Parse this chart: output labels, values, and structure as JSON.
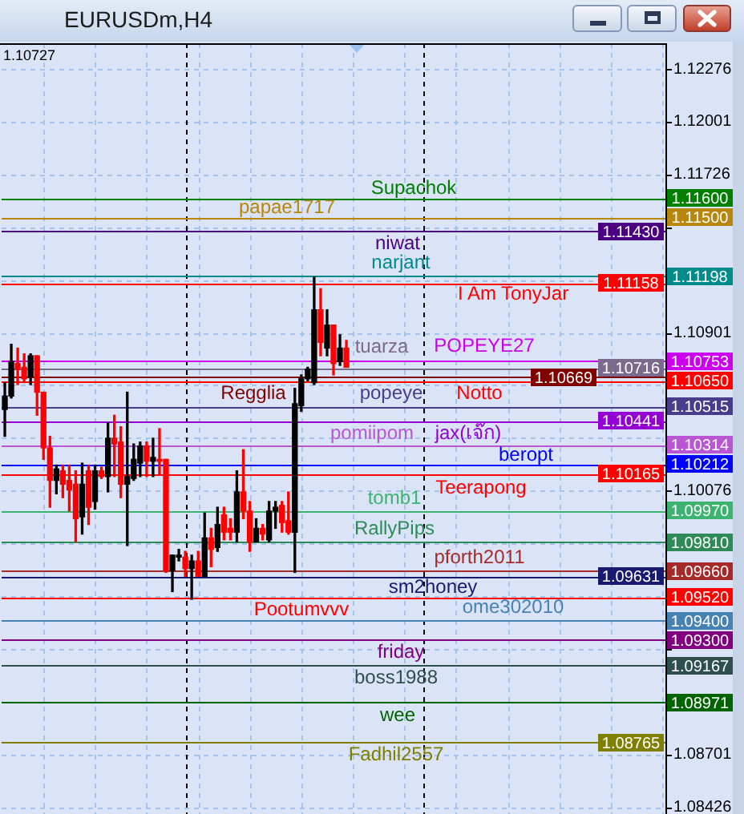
{
  "chart_data": {
    "type": "candlestick",
    "title": "EURUSDm,H4",
    "categories": [
      null,
      null,
      null,
      null,
      null,
      null,
      null,
      null,
      null,
      null,
      null,
      null,
      null,
      null,
      null,
      null,
      null,
      null,
      null,
      null,
      null,
      null,
      null,
      null,
      null,
      null,
      null,
      null,
      null,
      null,
      null,
      null,
      null,
      null,
      null,
      null,
      null,
      null,
      null,
      null,
      null,
      null,
      null,
      null,
      null,
      null,
      null,
      null,
      null,
      null,
      null,
      null,
      null,
      null,
      null,
      null,
      null,
      null,
      null,
      null,
      null,
      null,
      null,
      null,
      null,
      null,
      null,
      null,
      null,
      null,
      null,
      null,
      null,
      null,
      null,
      null,
      null,
      null,
      null,
      null,
      null,
      null,
      null,
      null,
      null,
      null,
      null,
      null,
      null,
      null,
      null,
      null,
      null,
      null,
      null,
      null,
      null,
      null,
      null,
      null,
      null,
      null,
      null
    ],
    "ohlc": [
      [
        1.105,
        1.1064,
        1.1036,
        1.1057
      ],
      [
        1.1057,
        1.1084,
        1.1056,
        1.1075
      ],
      [
        1.1074,
        1.1082,
        1.1063,
        1.1071
      ],
      [
        1.1072,
        1.1079,
        1.1064,
        1.1066
      ],
      [
        1.1067,
        1.1079,
        1.1063,
        1.1078
      ],
      [
        1.1078,
        1.1078,
        1.1047,
        1.1059
      ],
      [
        1.1059,
        1.1059,
        1.1024,
        1.103
      ],
      [
        1.103,
        1.1036,
        1.0999,
        1.1013
      ],
      [
        1.1013,
        1.1021,
        1.1006,
        1.1019
      ],
      [
        1.1018,
        1.1021,
        1.1004,
        1.1011
      ],
      [
        1.1013,
        1.1021,
        1.0997,
        1.1008
      ],
      [
        1.1011,
        1.1018,
        1.0981,
        1.0993
      ],
      [
        1.0994,
        1.1022,
        1.0985,
        1.1011
      ],
      [
        1.1018,
        1.1021,
        1.099,
        1.0999
      ],
      [
        1.1002,
        1.1021,
        1.0998,
        1.1018
      ],
      [
        1.1018,
        1.102,
        1.1014,
        1.1015
      ],
      [
        1.1015,
        1.1043,
        1.1007,
        1.1035
      ],
      [
        1.1035,
        1.1047,
        1.1015,
        1.1032
      ],
      [
        1.1033,
        1.1041,
        1.1004,
        1.1011
      ],
      [
        1.1011,
        1.1059,
        1.0979,
        1.1015
      ],
      [
        1.1014,
        1.1032,
        1.1013,
        1.1024
      ],
      [
        1.1022,
        1.1033,
        1.1015,
        1.1031
      ],
      [
        1.1031,
        1.1033,
        1.1015,
        1.1023
      ],
      [
        1.1023,
        1.1035,
        1.1015,
        1.1025
      ],
      [
        1.1024,
        1.104,
        1.1016,
        1.1023
      ],
      [
        1.1024,
        1.1024,
        1.0965,
        1.0966
      ],
      [
        1.0966,
        1.0974,
        1.0955,
        1.0974
      ],
      [
        1.0973,
        1.0977,
        1.0971,
        1.0974
      ],
      [
        1.0973,
        1.0976,
        1.0963,
        1.0967
      ],
      [
        1.0967,
        1.0974,
        1.0951,
        1.0971
      ],
      [
        1.0971,
        1.0976,
        1.0963,
        1.0963
      ],
      [
        1.0963,
        1.0996,
        1.0963,
        1.0983
      ],
      [
        1.0983,
        1.0988,
        1.0968,
        1.0977
      ],
      [
        1.0978,
        1.0999,
        1.0976,
        1.099
      ],
      [
        1.0995,
        1.0999,
        1.0982,
        1.0986
      ],
      [
        1.0988,
        1.0993,
        1.0982,
        1.0986
      ],
      [
        1.0986,
        1.1018,
        1.0981,
        1.1007
      ],
      [
        1.1007,
        1.1029,
        1.0993,
        1.0997
      ],
      [
        1.0997,
        1.1002,
        1.0976,
        1.0981
      ],
      [
        1.0981,
        1.0993,
        1.0981,
        1.0988
      ],
      [
        1.0988,
        1.099,
        1.0982,
        1.0985
      ],
      [
        1.0982,
        1.1002,
        1.0981,
        1.0997
      ],
      [
        1.0997,
        1.1002,
        1.0988,
        1.0999
      ],
      [
        1.1,
        1.1002,
        1.0986,
        1.0991
      ],
      [
        1.0992,
        1.1007,
        1.0985,
        1.0986
      ],
      [
        1.0986,
        1.1061,
        1.0965,
        1.1053
      ],
      [
        1.1052,
        1.1068,
        1.1049,
        1.1066
      ],
      [
        1.1066,
        1.1072,
        1.1065,
        1.1071
      ],
      [
        1.1064,
        1.1119,
        1.1063,
        1.1102
      ],
      [
        1.1102,
        1.1113,
        1.1078,
        1.1085
      ],
      [
        1.1082,
        1.1102,
        1.1078,
        1.1094
      ],
      [
        1.1094,
        1.1094,
        1.1068,
        1.1074
      ],
      [
        1.1075,
        1.1089,
        1.1073,
        1.1082
      ],
      [
        1.1082,
        1.1086,
        1.1072,
        1.1072
      ],
      null,
      null,
      null,
      null,
      null,
      null,
      null,
      null,
      null,
      null,
      null,
      null,
      null,
      null,
      null,
      null,
      null,
      null,
      null,
      null,
      null,
      null,
      null,
      null,
      null,
      null,
      null,
      null,
      null,
      null,
      null,
      null,
      null,
      null,
      null,
      null,
      null,
      null,
      null,
      null,
      null,
      null,
      null,
      null,
      null,
      null,
      null,
      null,
      null
    ],
    "colors": [
      "#000000",
      "#000000",
      "#ff0000",
      "#ff0000",
      "#000000",
      "#ff0000",
      "#ff0000",
      "#ff0000",
      "#000000",
      "#ff0000",
      "#ff0000",
      "#ff0000",
      "#000000",
      "#ff0000",
      "#000000",
      "#ff0000",
      "#000000",
      "#ff0000",
      "#ff0000",
      "#000000",
      "#000000",
      "#000000",
      "#ff0000",
      "#000000",
      "#ff0000",
      "#ff0000",
      "#000000",
      "#000000",
      "#ff0000",
      "#000000",
      "#ff0000",
      "#000000",
      "#ff0000",
      "#000000",
      "#ff0000",
      "#ff0000",
      "#000000",
      "#ff0000",
      "#ff0000",
      "#000000",
      "#ff0000",
      "#000000",
      "#000000",
      "#ff0000",
      "#ff0000",
      "#000000",
      "#000000",
      "#000000",
      "#000000",
      "#ff0000",
      "#000000",
      "#ff0000",
      "#000000",
      "#ff0000",
      null,
      null,
      null,
      null,
      null,
      null,
      null,
      null,
      null,
      null,
      null,
      null,
      null,
      null,
      null,
      null,
      null,
      null,
      null,
      null,
      null,
      null,
      null,
      null,
      null,
      null,
      null,
      null,
      null,
      null,
      null,
      null,
      null,
      null,
      null,
      null,
      null,
      null,
      null,
      null,
      null,
      null,
      null,
      null,
      null,
      null,
      null,
      null,
      null
    ],
    "ylim": [
      1.0839,
      1.1241
    ],
    "yticks": [
      1.08426,
      1.08701,
      {
        "value": 1.08976,
        "label": null
      },
      {
        "value": 1.09251,
        "label": null
      },
      {
        "value": 1.09526,
        "label": null
      },
      {
        "value": 1.09801,
        "label": null
      },
      1.10076,
      {
        "value": 1.10351,
        "label": null
      },
      {
        "value": 1.10626,
        "label": null
      },
      1.10901,
      {
        "value": 1.11176,
        "label": null
      },
      {
        "value": 1.11451,
        "label": null
      },
      1.11726,
      1.12001,
      1.12276
    ],
    "grid": true,
    "ref_lines": [
      {
        "axis": "y",
        "value": 1.116,
        "label": "Supachok",
        "color": "#008000"
      },
      {
        "axis": "y",
        "value": 1.115,
        "label": "papae1717",
        "color": "#b8860b"
      },
      {
        "axis": "y",
        "value": 1.1143,
        "label": "niwat",
        "color": "#4b0082"
      },
      {
        "axis": "y",
        "value": 1.11198,
        "label": "narjant",
        "color": "#008b8b"
      },
      {
        "axis": "y",
        "value": 1.11158,
        "label": "I Am TonyJar",
        "color": "#ff0000"
      },
      {
        "axis": "y",
        "value": 1.10753,
        "label": "POPEYE27",
        "color": "#cc00ee"
      },
      {
        "axis": "y",
        "value": 1.10716,
        "label": "tuarza",
        "color": "#7a6a8c"
      },
      {
        "axis": "y",
        "value": 1.10669,
        "label": "Regglia",
        "color": "#800000"
      },
      {
        "axis": "y",
        "value": 1.1065,
        "label": "Notto",
        "color": "#ff0000"
      },
      {
        "axis": "y",
        "value": 1.10515,
        "label": "popeye",
        "color": "#483d8b"
      },
      {
        "axis": "y",
        "value": 1.10441,
        "label": "jax(เจ๊ก)",
        "color": "#9400d3"
      },
      {
        "axis": "y",
        "value": 1.10314,
        "label": "pomiipom",
        "color": "#ba55d3"
      },
      {
        "axis": "y",
        "value": 1.10212,
        "label": "beropt",
        "color": "#0000ff"
      },
      {
        "axis": "y",
        "value": 1.10165,
        "label": "Teerapong",
        "color": "#ff0000"
      },
      {
        "axis": "y",
        "value": 1.0997,
        "label": "tomb1",
        "color": "#3cb371"
      },
      {
        "axis": "y",
        "value": 1.0981,
        "label": "RallyPips",
        "color": "#2e8b57"
      },
      {
        "axis": "y",
        "value": 1.0966,
        "label": "pforth2011",
        "color": "#a52a2a"
      },
      {
        "axis": "y",
        "value": 1.09631,
        "label": "sm2honey",
        "color": "#191970"
      },
      {
        "axis": "y",
        "value": 1.0952,
        "label": "Pootumvvv",
        "color": "#ff0000"
      },
      {
        "axis": "y",
        "value": 1.094,
        "label": "ome302010",
        "color": "#4682b4"
      },
      {
        "axis": "y",
        "value": 1.093,
        "label": "friday",
        "color": "#800080"
      },
      {
        "axis": "y",
        "value": 1.09167,
        "label": "boss1988",
        "color": "#2f4f4f"
      },
      {
        "axis": "y",
        "value": 1.08971,
        "label": "wee",
        "color": "#006400"
      },
      {
        "axis": "y",
        "value": 1.08765,
        "label": "Fadhil2557",
        "color": "#808000"
      }
    ],
    "annotations": [
      "1.10727",
      "1.11600",
      "1.11500",
      "1.11430",
      "1.11198",
      "1.11158",
      "1.10753",
      "1.10716",
      "1.10669",
      "1.10650",
      "1.10515",
      "1.10441",
      "1.10314",
      "1.10212",
      "1.10165",
      "1.09970",
      "1.09810",
      "1.09660",
      "1.09631",
      "1.09520",
      "1.09400",
      "1.09300",
      "1.09167",
      "1.08971",
      "1.08765"
    ]
  }
}
